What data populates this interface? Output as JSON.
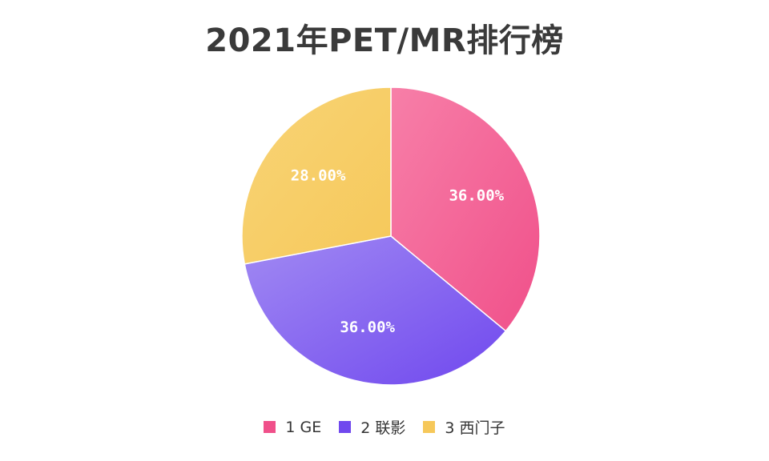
{
  "chart_data": {
    "type": "pie",
    "title": "2021年PET/MR排行榜",
    "slices": [
      {
        "name": "1 GE",
        "value": 36.0,
        "label": "36.00%",
        "color": "#f0508a",
        "color_light": "#f77fa8"
      },
      {
        "name": "2 联影",
        "value": 36.0,
        "label": "36.00%",
        "color": "#7048ee",
        "color_light": "#a18af3"
      },
      {
        "name": "3 西门子",
        "value": 28.0,
        "label": "28.00%",
        "color": "#f6c85a",
        "color_light": "#f8d476"
      }
    ],
    "start_angle_deg": 0,
    "direction": "clockwise",
    "legend_position": "bottom"
  }
}
